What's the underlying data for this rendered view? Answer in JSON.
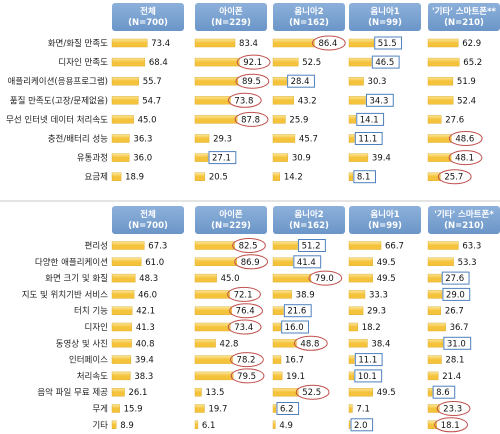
{
  "colors": {
    "header_bg": "#6b96c8",
    "bar": "#f5c33b",
    "bar_light": "#fbe79a",
    "highlight_high": "#c0504d",
    "highlight_low": "#4f81bd"
  },
  "chart_data": [
    {
      "type": "bar",
      "orientation": "horizontal",
      "columns": [
        "전체\n(N=700)",
        "아이폰\n(N=229)",
        "옴니아2\n(N=162)",
        "옴니아1\n(N=99)",
        "'기타' 스마트폰**\n(N=210)"
      ],
      "categories": [
        "화면/화질 만족도",
        "디자인 만족도",
        "애플리케이션(응용프로그램)",
        "품질 만족도(고장/문제없음)",
        "무선 인터넷 데이터 처리속도",
        "충전/배터리 성능",
        "유통과정",
        "요금제"
      ],
      "series": [
        {
          "name": "전체",
          "values": [
            73.4,
            68.4,
            55.7,
            54.7,
            45.0,
            36.3,
            36.0,
            18.9
          ],
          "highlight": [
            "",
            "",
            "",
            "",
            "",
            "",
            "",
            ""
          ]
        },
        {
          "name": "아이폰",
          "values": [
            83.4,
            92.1,
            89.5,
            73.8,
            87.8,
            29.3,
            27.1,
            20.5
          ],
          "highlight": [
            "",
            "high",
            "high",
            "high",
            "high",
            "",
            "low",
            ""
          ]
        },
        {
          "name": "옴니아2",
          "values": [
            86.4,
            52.5,
            28.4,
            43.2,
            25.9,
            45.7,
            30.9,
            14.2
          ],
          "highlight": [
            "high",
            "",
            "low",
            "",
            "",
            "",
            "",
            ""
          ]
        },
        {
          "name": "옴니아1",
          "values": [
            51.5,
            46.5,
            30.3,
            34.3,
            14.1,
            11.1,
            39.4,
            8.1
          ],
          "highlight": [
            "low",
            "low",
            "",
            "low",
            "low",
            "low",
            "",
            "low"
          ]
        },
        {
          "name": "기타 스마트폰",
          "values": [
            62.9,
            65.2,
            51.9,
            52.4,
            27.6,
            48.6,
            48.1,
            25.7
          ],
          "highlight": [
            "",
            "",
            "",
            "",
            "",
            "high",
            "high",
            "high"
          ]
        }
      ]
    },
    {
      "type": "bar",
      "orientation": "horizontal",
      "columns": [
        "전체\n(N=700)",
        "아이폰\n(N=229)",
        "옴니아2\n(N=162)",
        "옴니아1\n(N=99)",
        "'기타' 스마트폰*\n(N=210)"
      ],
      "categories": [
        "편리성",
        "다양한 애플리케이션",
        "화면 크기 및 화질",
        "지도 및 위치기반 서비스",
        "터치 기능",
        "디자인",
        "동영상 및 사진",
        "인터페이스",
        "처리속도",
        "음악 파일 무료 제공",
        "무게",
        "기타"
      ],
      "series": [
        {
          "name": "전체",
          "values": [
            67.3,
            61.0,
            48.3,
            46.0,
            42.1,
            41.3,
            40.8,
            39.4,
            38.3,
            26.1,
            15.9,
            8.9
          ],
          "highlight": [
            "",
            "",
            "",
            "",
            "",
            "",
            "",
            "",
            "",
            "",
            "",
            ""
          ]
        },
        {
          "name": "아이폰",
          "values": [
            82.5,
            86.9,
            45.0,
            72.1,
            76.4,
            73.4,
            42.8,
            78.2,
            79.5,
            13.5,
            19.7,
            6.1
          ],
          "highlight": [
            "high",
            "high",
            "",
            "high",
            "high",
            "high",
            "",
            "high",
            "high",
            "",
            "",
            ""
          ]
        },
        {
          "name": "옴니아2",
          "values": [
            51.2,
            41.4,
            79.0,
            38.9,
            21.6,
            16.0,
            48.8,
            16.7,
            19.1,
            52.5,
            6.2,
            4.9
          ],
          "highlight": [
            "low",
            "low",
            "high",
            "",
            "low",
            "low",
            "high",
            "",
            "",
            "high",
            "low",
            ""
          ]
        },
        {
          "name": "옴니아1",
          "values": [
            66.7,
            49.5,
            49.5,
            33.3,
            29.3,
            18.2,
            38.4,
            11.1,
            10.1,
            49.5,
            7.1,
            2.0
          ],
          "highlight": [
            "",
            "",
            "",
            "",
            "",
            "",
            "",
            "low",
            "low",
            "",
            "",
            "low"
          ]
        },
        {
          "name": "기타 스마트폰",
          "values": [
            63.3,
            53.3,
            27.6,
            29.0,
            26.7,
            36.7,
            31.0,
            28.1,
            21.4,
            8.6,
            23.3,
            18.1
          ],
          "highlight": [
            "",
            "",
            "low",
            "low",
            "",
            "",
            "low",
            "",
            "",
            "low",
            "high",
            "high"
          ]
        }
      ]
    }
  ]
}
